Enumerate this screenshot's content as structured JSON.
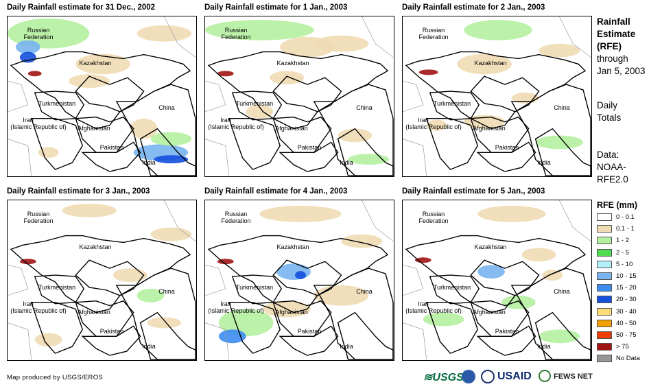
{
  "panels": [
    {
      "title": "Daily Rainfall estimate for 31 Dec., 2002"
    },
    {
      "title": "Daily Rainfall estimate for 1 Jan., 2003"
    },
    {
      "title": "Daily Rainfall estimate for 2 Jan., 2003"
    },
    {
      "title": "Daily Rainfall estimate for 3 Jan., 2003"
    },
    {
      "title": "Daily Rainfall estimate for 4 Jan., 2003"
    },
    {
      "title": "Daily Rainfall estimate for 5 Jan., 2003"
    }
  ],
  "countries": {
    "russia_1": "Russian",
    "russia_2": "Federation",
    "kazakhstan": "Kazakhstan",
    "turkmenistan": "Turkmenistan",
    "china": "China",
    "iran_1": "Iran",
    "iran_2": "(Islamic Republic of)",
    "afghanistan": "Afghanistan",
    "pakistan": "Pakistan",
    "india": "India"
  },
  "side": {
    "title_1": "Rainfall",
    "title_2": "Estimate",
    "title_3": "(RFE)",
    "through": "through",
    "date": "Jan 5, 2003",
    "daily": "Daily",
    "totals": "Totals",
    "data": "Data:",
    "source_1": "NOAA-",
    "source_2": "RFE2.0"
  },
  "legend": {
    "title": "RFE (mm)",
    "items": [
      {
        "label": "0 - 0.1",
        "color": "#ffffff"
      },
      {
        "label": "0.1 - 1",
        "color": "#f0dcb4"
      },
      {
        "label": "1 - 2",
        "color": "#b4f0a0"
      },
      {
        "label": "2 - 5",
        "color": "#50dc50"
      },
      {
        "label": "5 - 10",
        "color": "#b4f0fa"
      },
      {
        "label": "10 - 15",
        "color": "#78b4f0"
      },
      {
        "label": "15 - 20",
        "color": "#3c8cf0"
      },
      {
        "label": "20 - 30",
        "color": "#1450dc"
      },
      {
        "label": "30 - 40",
        "color": "#fadc78"
      },
      {
        "label": "40 - 50",
        "color": "#f0a000"
      },
      {
        "label": "50 - 75",
        "color": "#f03c00"
      },
      {
        "label": "> 75",
        "color": "#a01414"
      },
      {
        "label": "No Data",
        "color": "#969696"
      }
    ]
  },
  "footer": {
    "credit": "Map produced by USGS/EROS"
  },
  "logos": {
    "usgs": "≋USGS",
    "usaid": "USAID",
    "fews": "FEWS NET"
  }
}
